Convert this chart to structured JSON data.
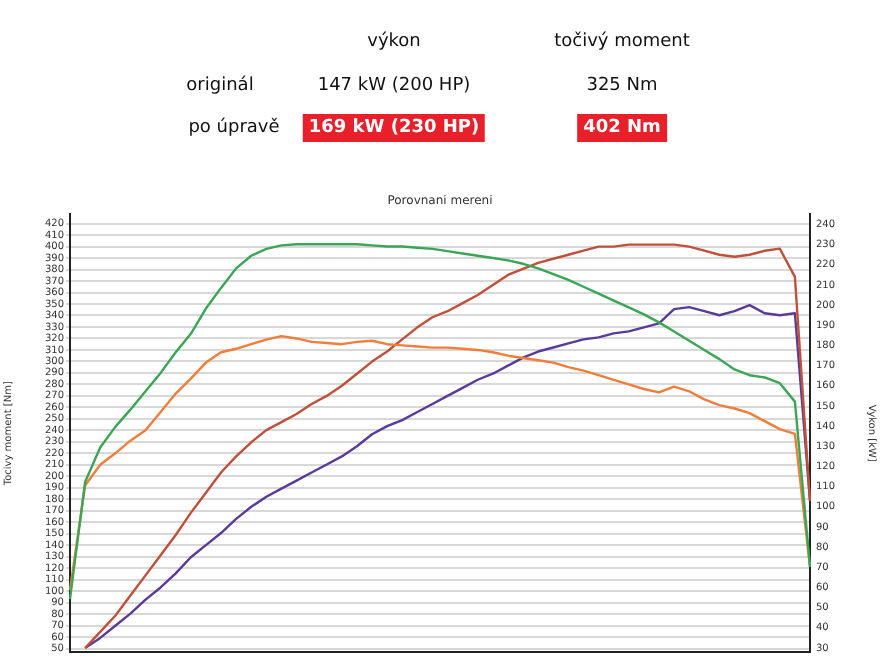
{
  "chart_data": [
    {
      "type": "other",
      "annotations": [
        "výkon",
        "točivý moment",
        "originál",
        "147 kW (200 HP)",
        "325 Nm",
        "po úpravě",
        "169 kW (230 HP)",
        "402 Nm"
      ]
    },
    {
      "type": "line",
      "title": "Porovnani mereni",
      "ylabel": "Tocivy moment [Nm]",
      "y2label": "Vykon [kW]",
      "categories": [
        null,
        null,
        null,
        null,
        null,
        null,
        null,
        null,
        null,
        null,
        null,
        null,
        null,
        null,
        null,
        null,
        null,
        null,
        null,
        null,
        null,
        null,
        null,
        null,
        null,
        null,
        null,
        null,
        null,
        null,
        null,
        null,
        null,
        null,
        null,
        null,
        null,
        null,
        null,
        null,
        null,
        null,
        null,
        null,
        null,
        null,
        null,
        null,
        null,
        null
      ],
      "series": [
        {
          "color": "#3aa655",
          "values": [
            93,
            195,
            225,
            243,
            258,
            274,
            290,
            308,
            324,
            346,
            364,
            381,
            392,
            398,
            401,
            402,
            402,
            402,
            402,
            402,
            401,
            400,
            400,
            399,
            398,
            396,
            394,
            392,
            390,
            388,
            385,
            381,
            376,
            371,
            365,
            359,
            353,
            347,
            341,
            334,
            326,
            318,
            310,
            302,
            293,
            288,
            286,
            281,
            265,
            121
          ]
        },
        {
          "color": "#f07d3a",
          "values": [
            101,
            192,
            210,
            220,
            231,
            240,
            256,
            272,
            285,
            299,
            308,
            311,
            315,
            319,
            322,
            320,
            317,
            316,
            315,
            317,
            318,
            315,
            314,
            313,
            312,
            312,
            311,
            310,
            308,
            305,
            303,
            301,
            299,
            295,
            292,
            288,
            284,
            280,
            276,
            273,
            278,
            274,
            267,
            262,
            259,
            255,
            248,
            241,
            237,
            121
          ]
        },
        {
          "color": "#c0503a",
          "axis": "y2",
          "values": [
            null,
            30,
            38,
            46,
            56,
            66,
            76,
            86,
            97,
            107,
            117,
            125,
            132,
            138,
            142,
            146,
            151,
            155,
            160,
            166,
            172,
            177,
            183,
            189,
            194,
            197,
            201,
            205,
            210,
            215,
            218,
            221,
            223,
            225,
            227,
            229,
            229,
            230,
            230,
            230,
            230,
            229,
            227,
            225,
            224,
            225,
            227,
            228,
            214,
            103
          ]
        },
        {
          "color": "#5a3a9a",
          "axis": "y2",
          "values": [
            null,
            30,
            35,
            41,
            47,
            54,
            60,
            67,
            75,
            81,
            87,
            94,
            100,
            105,
            109,
            113,
            117,
            121,
            125,
            130,
            136,
            140,
            143,
            147,
            151,
            155,
            159,
            163,
            166,
            170,
            174,
            177,
            179,
            181,
            183,
            184,
            186,
            187,
            189,
            191,
            198,
            199,
            197,
            195,
            197,
            200,
            196,
            195,
            196,
            103
          ]
        }
      ],
      "ylim": [
        47,
        428
      ],
      "yticks": [
        50,
        60,
        70,
        80,
        90,
        100,
        110,
        120,
        130,
        140,
        150,
        160,
        170,
        180,
        190,
        200,
        210,
        220,
        230,
        240,
        250,
        260,
        270,
        280,
        290,
        300,
        310,
        320,
        330,
        340,
        350,
        360,
        370,
        380,
        390,
        400,
        410,
        420
      ],
      "y2lim": [
        28,
        245
      ],
      "y2ticks": [
        30,
        40,
        50,
        60,
        70,
        80,
        90,
        100,
        110,
        120,
        130,
        140,
        150,
        160,
        170,
        180,
        190,
        200,
        210,
        220,
        230,
        240
      ],
      "grid": "y"
    }
  ]
}
